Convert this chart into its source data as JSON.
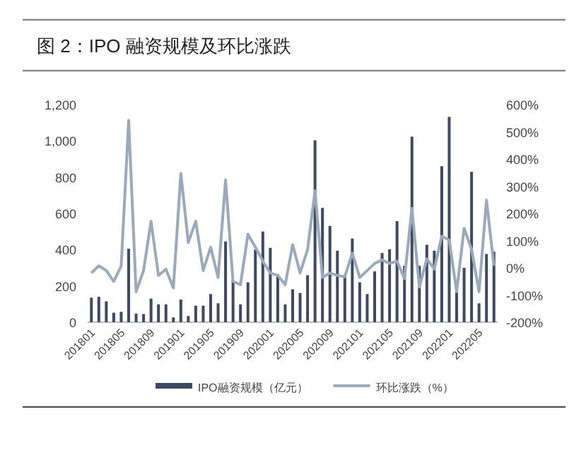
{
  "chart_data": {
    "type": "bar",
    "title": "图 2：IPO 融资规模及环比涨跌",
    "categories": [
      "201801",
      null,
      null,
      null,
      "201805",
      null,
      null,
      null,
      "201809",
      null,
      null,
      null,
      "201901",
      null,
      null,
      null,
      "201905",
      null,
      null,
      null,
      "201909",
      null,
      null,
      null,
      "202001",
      null,
      null,
      null,
      "202005",
      null,
      null,
      null,
      "202009",
      null,
      null,
      null,
      "202101",
      null,
      null,
      null,
      "202105",
      null,
      null,
      null,
      "202109",
      null,
      null,
      null,
      "202201",
      null,
      null,
      null,
      "202205",
      null,
      null
    ],
    "series": [
      {
        "name": "IPO融资规模（亿元）",
        "color": "#3d4a60",
        "values": [
          135,
          140,
          115,
          52,
          57,
          405,
          47,
          45,
          130,
          98,
          98,
          26,
          125,
          34,
          91,
          91,
          155,
          104,
          445,
          230,
          98,
          220,
          400,
          500,
          410,
          265,
          98,
          181,
          161,
          259,
          1003,
          630,
          531,
          394,
          259,
          461,
          220,
          155,
          280,
          381,
          402,
          557,
          311,
          1023,
          311,
          427,
          394,
          860,
          1132,
          168,
          300,
          829,
          104,
          376,
          389
        ]
      },
      {
        "name": "环比涨跌（%）",
        "type": "line",
        "axis": "y2",
        "color": "#9aaabb",
        "values": [
          -19,
          7,
          -10,
          -50,
          7,
          542,
          -88,
          -10,
          171,
          -28,
          -5,
          -74,
          347,
          93,
          171,
          -10,
          76,
          -36,
          323,
          -50,
          -62,
          123,
          76,
          24,
          -19,
          -28,
          -62,
          85,
          -19,
          67,
          283,
          -36,
          -19,
          -28,
          -33,
          54,
          -36,
          -10,
          16,
          29,
          16,
          24,
          -40,
          219,
          -71,
          33,
          -5,
          116,
          102,
          -88,
          145,
          67,
          -88,
          249,
          7
        ]
      }
    ],
    "ylim": [
      0,
      1200
    ],
    "yticks": [
      0,
      200,
      400,
      600,
      800,
      {
        "value": 1000,
        "label": "1,000"
      },
      {
        "value": 1200,
        "label": "1,200"
      }
    ],
    "y2lim": [
      -200,
      600
    ],
    "y2ticks": [
      {
        "value": -200,
        "label": "-200%"
      },
      {
        "value": -100,
        "label": "-100%"
      },
      {
        "value": 0,
        "label": "0%"
      },
      {
        "value": 100,
        "label": "100%"
      },
      {
        "value": 200,
        "label": "200%"
      },
      {
        "value": 300,
        "label": "300%"
      },
      {
        "value": 400,
        "label": "400%"
      },
      {
        "value": 500,
        "label": "500%"
      },
      {
        "value": 600,
        "label": "600%"
      }
    ],
    "grid": false,
    "legend": "bottom"
  }
}
